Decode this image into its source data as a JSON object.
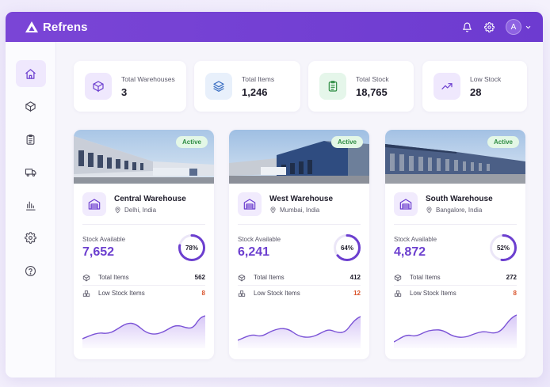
{
  "header": {
    "brand": "Refrens",
    "avatar_initial": "A"
  },
  "icons": {
    "brand": "refrens-logo-icon",
    "notifications": "bell-icon",
    "settings": "gear-icon",
    "account_menu": "chevron-down-icon"
  },
  "sidebar": {
    "items": [
      {
        "icon": "home-icon",
        "active": true
      },
      {
        "icon": "box-icon",
        "active": false
      },
      {
        "icon": "clipboard-icon",
        "active": false
      },
      {
        "icon": "truck-icon",
        "active": false
      },
      {
        "icon": "bar-chart-icon",
        "active": false
      },
      {
        "icon": "gear-icon",
        "active": false
      },
      {
        "icon": "help-icon",
        "active": false
      }
    ]
  },
  "stats": [
    {
      "label": "Total Warehouses",
      "value": "3",
      "icon": "box-icon"
    },
    {
      "label": "Total Items",
      "value": "1,246",
      "icon": "layers-icon"
    },
    {
      "label": "Total Stock",
      "value": "18,765",
      "icon": "clipboard-icon"
    },
    {
      "label": "Low Stock",
      "value": "28",
      "icon": "trend-icon"
    }
  ],
  "warehouses": [
    {
      "status": "Active",
      "name": "Central Warehouse",
      "location": "Delhi, India",
      "stock_label": "Stock Available",
      "stock_value": "7,652",
      "capacity_percent": 78,
      "capacity_label": "78%",
      "total_items_label": "Total Items",
      "total_items": "562",
      "low_stock_label": "Low Stock Items",
      "low_stock": "8"
    },
    {
      "status": "Active",
      "name": "West Warehouse",
      "location": "Mumbai, India",
      "stock_label": "Stock Available",
      "stock_value": "6,241",
      "capacity_percent": 64,
      "capacity_label": "64%",
      "total_items_label": "Total Items",
      "total_items": "412",
      "low_stock_label": "Low Stock Items",
      "low_stock": "12"
    },
    {
      "status": "Active",
      "name": "South Warehouse",
      "location": "Bangalore, India",
      "stock_label": "Stock Available",
      "stock_value": "4,872",
      "capacity_percent": 52,
      "capacity_label": "52%",
      "total_items_label": "Total Items",
      "total_items": "272",
      "low_stock_label": "Low Stock Items",
      "low_stock": "8"
    }
  ],
  "colors": {
    "brand": "#7142d4",
    "accent": "#6c3fcf",
    "active_badge_bg": "#e3f7e6",
    "active_badge_text": "#2f8d44",
    "low_stock_warning": "#d9532b",
    "ring_track": "#ebe6f7",
    "sparkline": "#7a52d6"
  }
}
